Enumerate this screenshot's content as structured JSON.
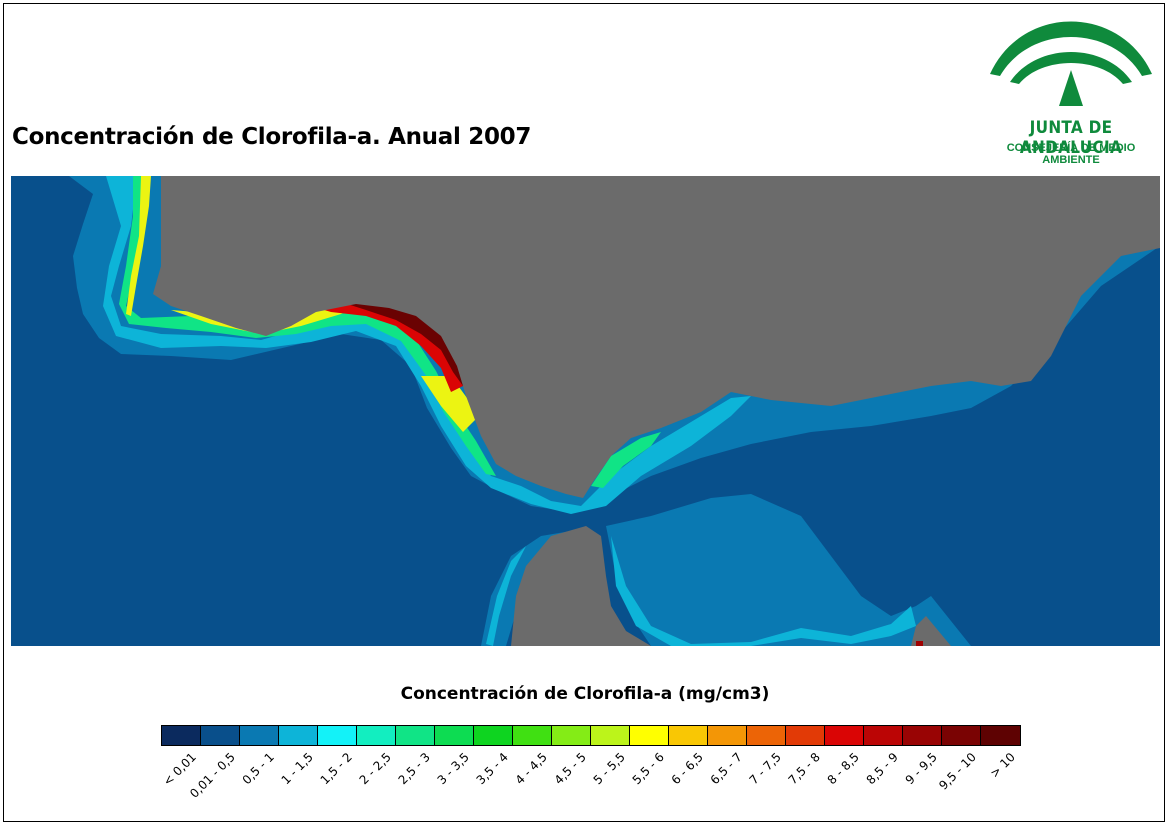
{
  "title": "Concentración de Clorofila-a. Anual 2007",
  "logo": {
    "main_text": "JUNTA DE ANDALUCIA",
    "sub_text": "CONSEJERÍA DE MEDIO AMBIENTE",
    "color": "#0f8a3c"
  },
  "map": {
    "land_color": "#6b6b6b",
    "ocean_color": "#08508c"
  },
  "legend": {
    "title": "Concentración de Clorofila-a (mg/cm3)",
    "classes": [
      {
        "label": "< 0,01",
        "color": "#0b2a5e"
      },
      {
        "label": "0,01 - 0,5",
        "color": "#094f8b"
      },
      {
        "label": "0,5 - 1",
        "color": "#0a79b2"
      },
      {
        "label": "1 - 1,5",
        "color": "#0db4d8"
      },
      {
        "label": "1,5 - 2",
        "color": "#13f2f8"
      },
      {
        "label": "2 - 2,5",
        "color": "#12eec0"
      },
      {
        "label": "2,5 - 3",
        "color": "#10e486"
      },
      {
        "label": "3 - 3,5",
        "color": "#0ddc52"
      },
      {
        "label": "3,5 - 4",
        "color": "#0ed420"
      },
      {
        "label": "4 - 4,5",
        "color": "#40e012"
      },
      {
        "label": "4,5 - 5",
        "color": "#84ec16"
      },
      {
        "label": "5 - 5,5",
        "color": "#bcf41a"
      },
      {
        "label": "5,5 - 6",
        "color": "#ffff00"
      },
      {
        "label": "6 - 6,5",
        "color": "#f9c704"
      },
      {
        "label": "6,5 - 7",
        "color": "#f39606"
      },
      {
        "label": "7 - 7,5",
        "color": "#ec6406"
      },
      {
        "label": "7,5 - 8",
        "color": "#e23a06"
      },
      {
        "label": "8 - 8,5",
        "color": "#da0505"
      },
      {
        "label": "8,5 - 9",
        "color": "#bb0505"
      },
      {
        "label": "9 - 9,5",
        "color": "#990404"
      },
      {
        "label": "9,5 - 10",
        "color": "#7a0303"
      },
      {
        "label": "> 10",
        "color": "#5e0202"
      }
    ]
  }
}
